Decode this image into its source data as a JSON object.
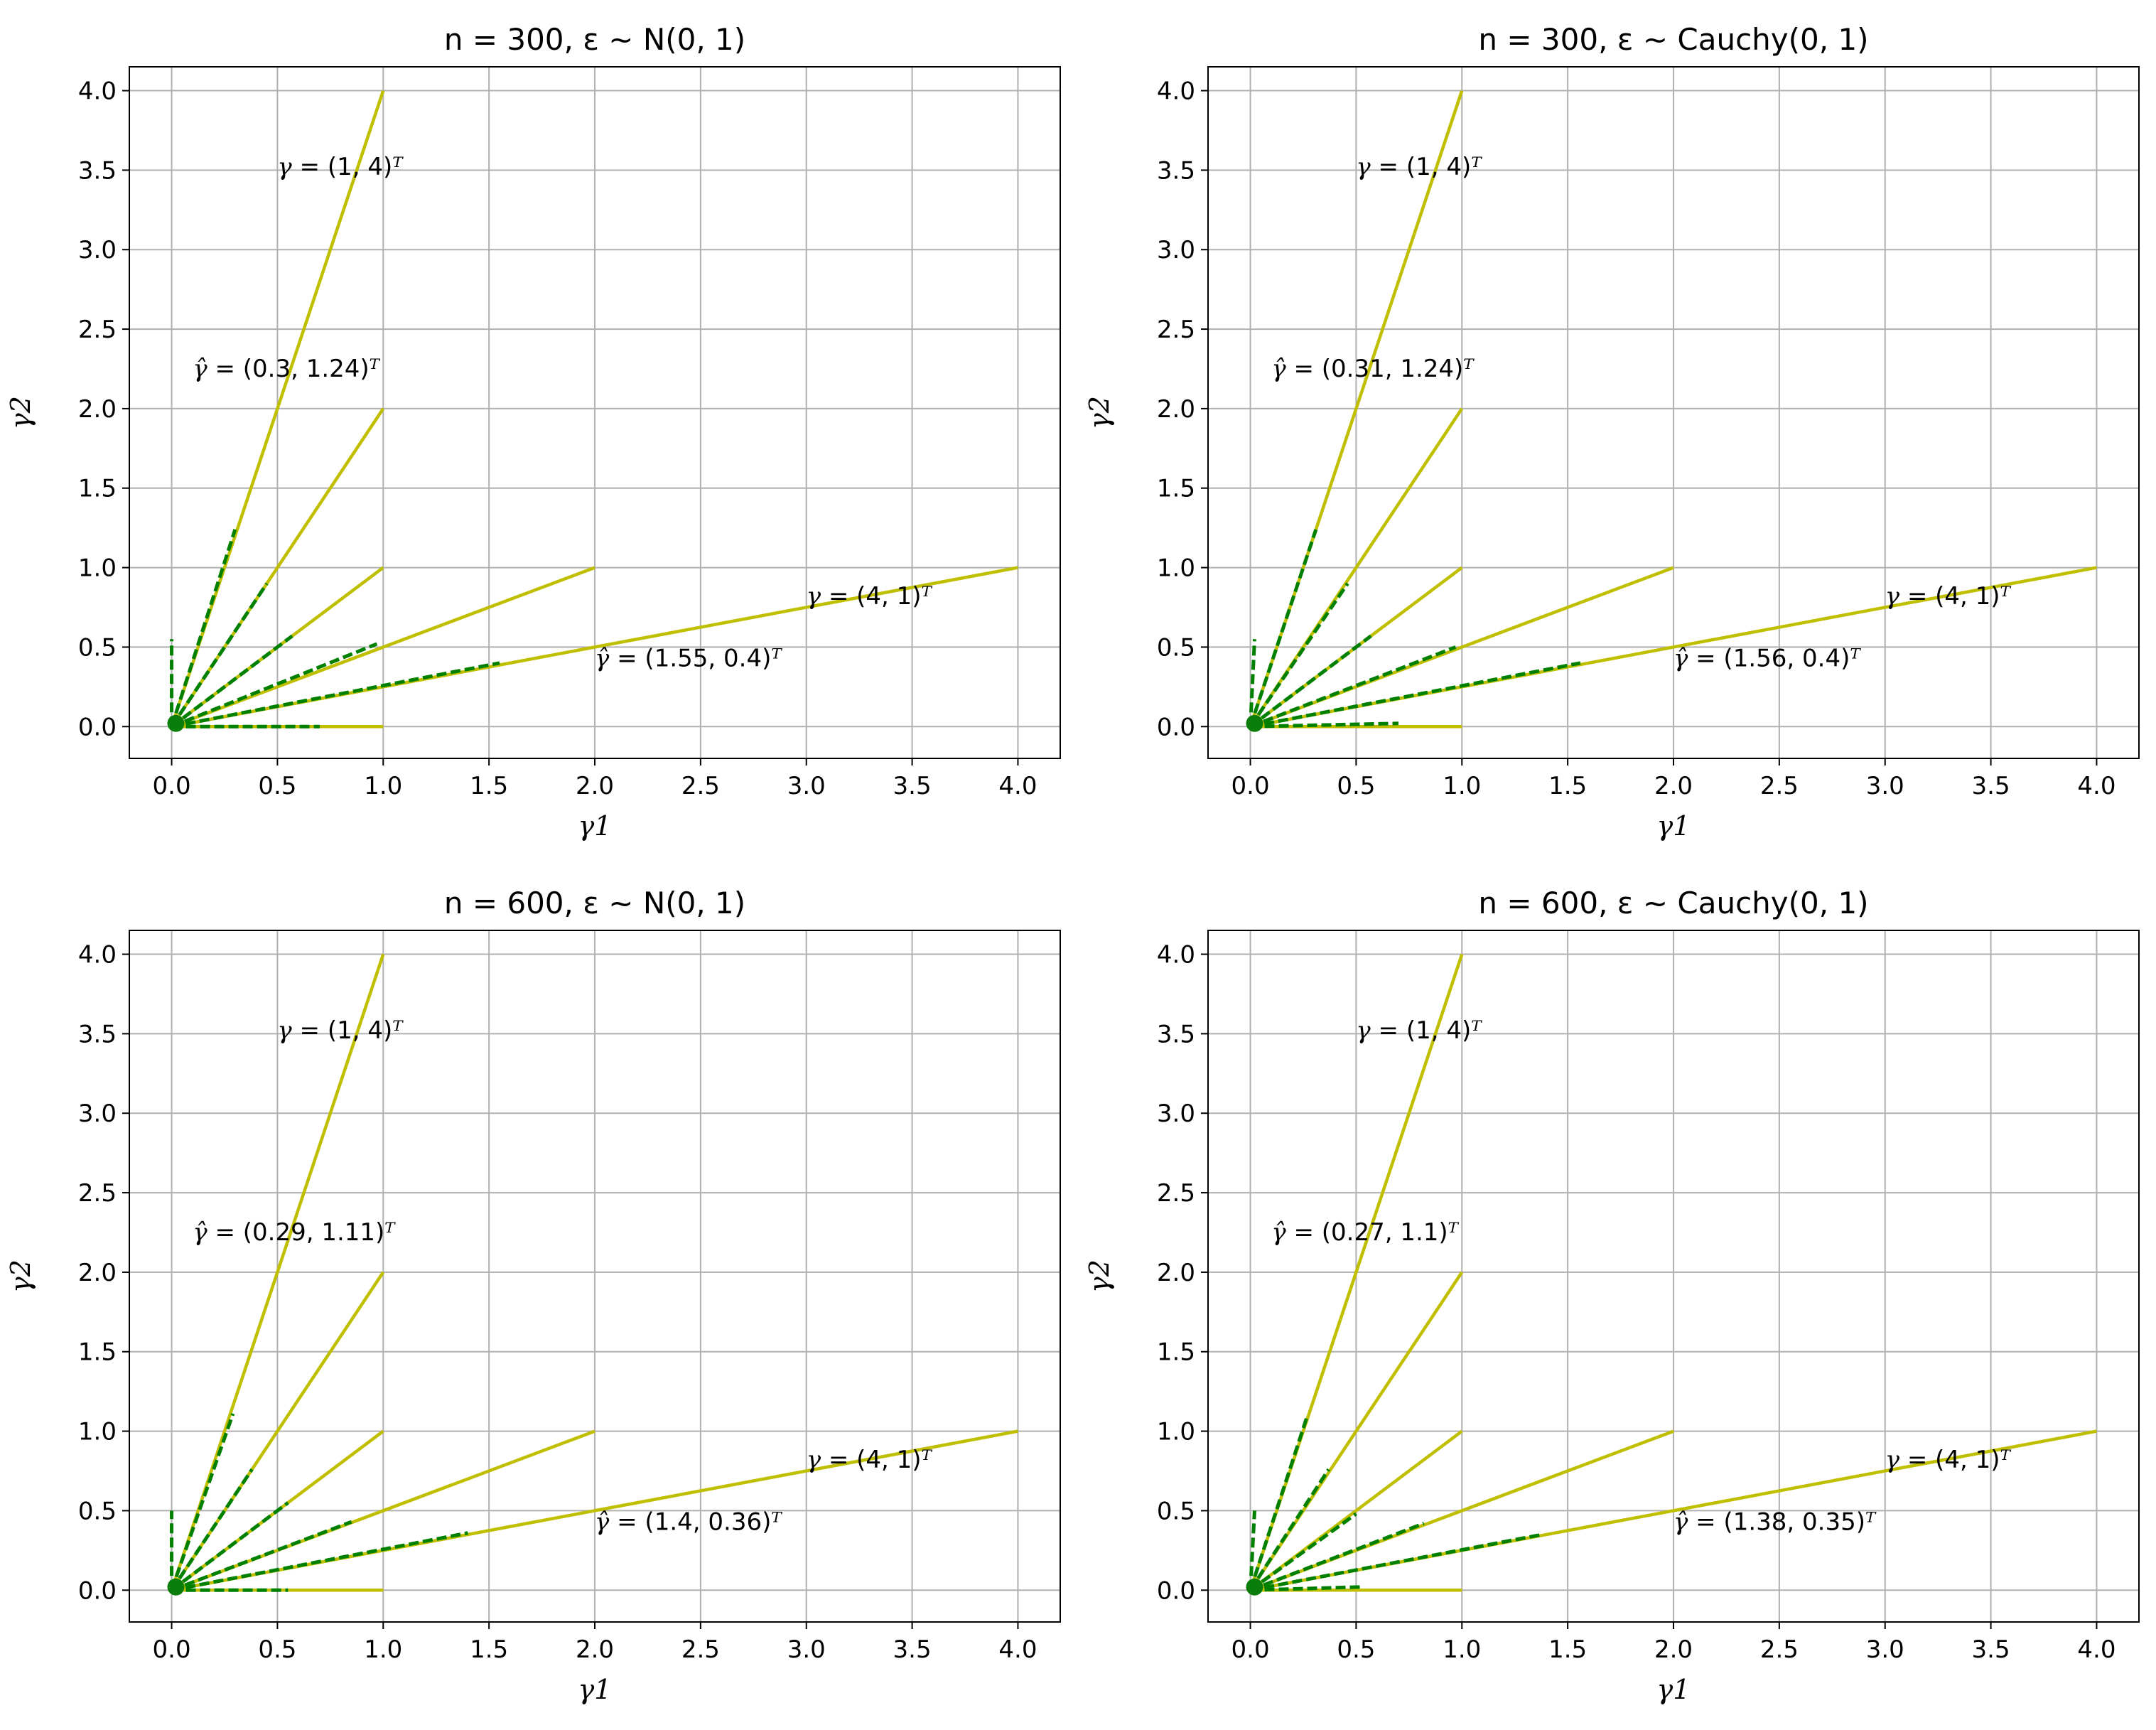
{
  "chart_data": [
    {
      "type": "line",
      "title": "n = 300, ε ~ N(0, 1)",
      "xlabel": "γ1",
      "ylabel": "γ2",
      "xlim": [
        -0.2,
        4.2
      ],
      "ylim": [
        -0.2,
        4.15
      ],
      "xticks": [
        "0.0",
        "0.5",
        "1.0",
        "1.5",
        "2.0",
        "2.5",
        "3.0",
        "3.5",
        "4.0"
      ],
      "yticks": [
        "0.0",
        "0.5",
        "1.0",
        "1.5",
        "2.0",
        "2.5",
        "3.0",
        "3.5",
        "4.0"
      ],
      "grid": true,
      "true_gammas": [
        [
          1,
          0
        ],
        [
          4,
          1
        ],
        [
          2,
          1
        ],
        [
          1,
          1
        ],
        [
          1,
          2
        ],
        [
          1,
          4
        ]
      ],
      "estimated_gammas": [
        [
          0.7,
          0.0
        ],
        [
          1.55,
          0.4
        ],
        [
          0.97,
          0.52
        ],
        [
          0.57,
          0.57
        ],
        [
          0.45,
          0.9
        ],
        [
          0.3,
          1.24
        ],
        [
          0.0,
          0.55
        ]
      ],
      "annotations": [
        {
          "text": "γ = (1, 4)ᵀ",
          "x": 0.5,
          "y": 3.47
        },
        {
          "text": "γ̂ = (0.3, 1.24)ᵀ",
          "x": 0.1,
          "y": 2.2
        },
        {
          "text": "γ = (4, 1)ᵀ",
          "x": 3.0,
          "y": 0.77
        },
        {
          "text": "γ̂ = (1.55, 0.4)ᵀ",
          "x": 2.0,
          "y": 0.38
        }
      ]
    },
    {
      "type": "line",
      "title": "n = 300, ε ~ Cauchy(0, 1)",
      "xlabel": "γ1",
      "ylabel": "γ2",
      "xlim": [
        -0.2,
        4.2
      ],
      "ylim": [
        -0.2,
        4.15
      ],
      "xticks": [
        "0.0",
        "0.5",
        "1.0",
        "1.5",
        "2.0",
        "2.5",
        "3.0",
        "3.5",
        "4.0"
      ],
      "yticks": [
        "0.0",
        "0.5",
        "1.0",
        "1.5",
        "2.0",
        "2.5",
        "3.0",
        "3.5",
        "4.0"
      ],
      "grid": true,
      "true_gammas": [
        [
          1,
          0
        ],
        [
          4,
          1
        ],
        [
          2,
          1
        ],
        [
          1,
          1
        ],
        [
          1,
          2
        ],
        [
          1,
          4
        ]
      ],
      "estimated_gammas": [
        [
          0.7,
          0.02
        ],
        [
          1.56,
          0.4
        ],
        [
          0.97,
          0.5
        ],
        [
          0.57,
          0.57
        ],
        [
          0.46,
          0.9
        ],
        [
          0.31,
          1.24
        ],
        [
          0.02,
          0.55
        ]
      ],
      "annotations": [
        {
          "text": "γ = (1, 4)ᵀ",
          "x": 0.5,
          "y": 3.47
        },
        {
          "text": "γ̂ = (0.31, 1.24)ᵀ",
          "x": 0.1,
          "y": 2.2
        },
        {
          "text": "γ = (4, 1)ᵀ",
          "x": 3.0,
          "y": 0.77
        },
        {
          "text": "γ̂ = (1.56, 0.4)ᵀ",
          "x": 2.0,
          "y": 0.38
        }
      ]
    },
    {
      "type": "line",
      "title": "n = 600, ε ~ N(0, 1)",
      "xlabel": "γ1",
      "ylabel": "γ2",
      "xlim": [
        -0.2,
        4.2
      ],
      "ylim": [
        -0.2,
        4.15
      ],
      "xticks": [
        "0.0",
        "0.5",
        "1.0",
        "1.5",
        "2.0",
        "2.5",
        "3.0",
        "3.5",
        "4.0"
      ],
      "yticks": [
        "0.0",
        "0.5",
        "1.0",
        "1.5",
        "2.0",
        "2.5",
        "3.0",
        "3.5",
        "4.0"
      ],
      "grid": true,
      "true_gammas": [
        [
          1,
          0
        ],
        [
          4,
          1
        ],
        [
          2,
          1
        ],
        [
          1,
          1
        ],
        [
          1,
          2
        ],
        [
          1,
          4
        ]
      ],
      "estimated_gammas": [
        [
          0.55,
          0.0
        ],
        [
          1.4,
          0.36
        ],
        [
          0.85,
          0.43
        ],
        [
          0.55,
          0.55
        ],
        [
          0.38,
          0.76
        ],
        [
          0.29,
          1.11
        ],
        [
          0.0,
          0.5
        ]
      ],
      "annotations": [
        {
          "text": "γ = (1, 4)ᵀ",
          "x": 0.5,
          "y": 3.47
        },
        {
          "text": "γ̂ = (0.29, 1.11)ᵀ",
          "x": 0.1,
          "y": 2.2
        },
        {
          "text": "γ = (4, 1)ᵀ",
          "x": 3.0,
          "y": 0.77
        },
        {
          "text": "γ̂ = (1.4, 0.36)ᵀ",
          "x": 2.0,
          "y": 0.38
        }
      ]
    },
    {
      "type": "line",
      "title": "n = 600, ε ~ Cauchy(0, 1)",
      "xlabel": "γ1",
      "ylabel": "γ2",
      "xlim": [
        -0.2,
        4.2
      ],
      "ylim": [
        -0.2,
        4.15
      ],
      "xticks": [
        "0.0",
        "0.5",
        "1.0",
        "1.5",
        "2.0",
        "2.5",
        "3.0",
        "3.5",
        "4.0"
      ],
      "yticks": [
        "0.0",
        "0.5",
        "1.0",
        "1.5",
        "2.0",
        "2.5",
        "3.0",
        "3.5",
        "4.0"
      ],
      "grid": true,
      "true_gammas": [
        [
          1,
          0
        ],
        [
          4,
          1
        ],
        [
          2,
          1
        ],
        [
          1,
          1
        ],
        [
          1,
          2
        ],
        [
          1,
          4
        ]
      ],
      "estimated_gammas": [
        [
          0.52,
          0.02
        ],
        [
          1.38,
          0.35
        ],
        [
          0.82,
          0.42
        ],
        [
          0.5,
          0.48
        ],
        [
          0.37,
          0.76
        ],
        [
          0.27,
          1.1
        ],
        [
          0.02,
          0.5
        ]
      ],
      "annotations": [
        {
          "text": "γ = (1, 4)ᵀ",
          "x": 0.5,
          "y": 3.47
        },
        {
          "text": "γ̂ = (0.27, 1.1)ᵀ",
          "x": 0.1,
          "y": 2.2
        },
        {
          "text": "γ = (4, 1)ᵀ",
          "x": 3.0,
          "y": 0.77
        },
        {
          "text": "γ̂ = (1.38, 0.35)ᵀ",
          "x": 2.0,
          "y": 0.38
        }
      ]
    }
  ],
  "colors": {
    "true_line": "#bfbf00",
    "estimate_line": "#008000",
    "grid": "#b0b0b0"
  }
}
